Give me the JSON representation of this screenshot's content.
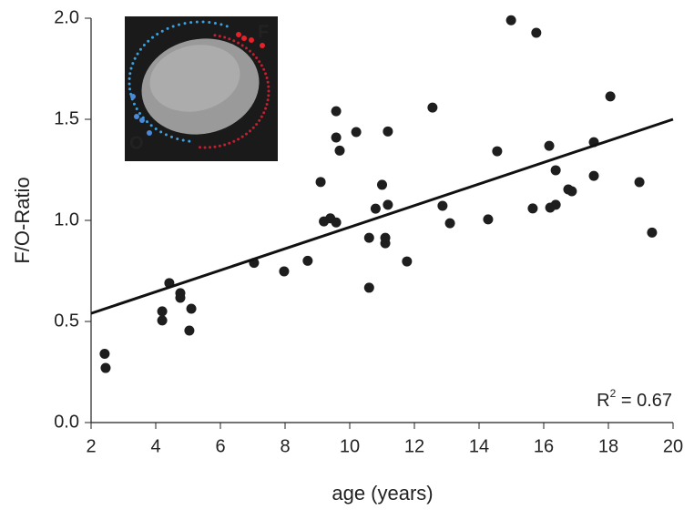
{
  "chart_data": {
    "type": "scatter",
    "x_label": "age (years)",
    "y_label": "F/O-Ratio",
    "x": [
      2.42,
      2.45,
      4.2,
      4.2,
      4.42,
      4.76,
      4.76,
      5.1,
      5.04,
      7.04,
      7.97,
      8.7,
      9.1,
      9.2,
      9.4,
      9.58,
      9.58,
      9.58,
      9.69,
      10.2,
      10.6,
      10.6,
      10.8,
      11.0,
      11.1,
      11.1,
      11.18,
      11.18,
      11.77,
      12.56,
      12.87,
      13.1,
      14.28,
      14.56,
      14.99,
      15.66,
      15.77,
      16.17,
      16.2,
      16.37,
      16.37,
      16.76,
      16.87,
      17.55,
      17.55,
      18.06,
      18.96,
      19.35
    ],
    "values": [
      0.34,
      0.27,
      0.55,
      0.505,
      0.69,
      0.64,
      0.617,
      0.563,
      0.455,
      0.79,
      0.748,
      0.8,
      1.19,
      0.995,
      1.01,
      0.99,
      1.54,
      1.41,
      1.345,
      1.437,
      0.914,
      0.667,
      1.058,
      1.176,
      0.914,
      0.887,
      1.44,
      1.077,
      0.797,
      1.558,
      1.072,
      0.986,
      1.005,
      1.342,
      1.99,
      1.059,
      1.928,
      1.369,
      1.063,
      1.248,
      1.077,
      1.153,
      1.144,
      1.387,
      1.22,
      1.613,
      1.189,
      0.94
    ],
    "color": "#1e1e1e",
    "trend": {
      "x": [
        2,
        20
      ],
      "values": [
        0.54,
        1.5
      ],
      "color": "#111111"
    },
    "annotation": {
      "base": "R",
      "sup": "2",
      "rest": " = 0.67"
    },
    "inset": {
      "front_label": "F",
      "front_color": "#e8202a",
      "back_label": "O",
      "back_color": "#4a8ad8"
    },
    "xlim": [
      2,
      20
    ],
    "ylim": [
      0,
      2
    ],
    "xticks": [
      2,
      4,
      6,
      8,
      10,
      12,
      14,
      16,
      18,
      20
    ],
    "yticks": [
      {
        "value": 0,
        "label": "0.0"
      },
      {
        "value": 0.5,
        "label": "0.5"
      },
      {
        "value": 1,
        "label": "1.0"
      },
      {
        "value": 1.5,
        "label": "1.5"
      },
      {
        "value": 2,
        "label": "2.0"
      }
    ]
  }
}
